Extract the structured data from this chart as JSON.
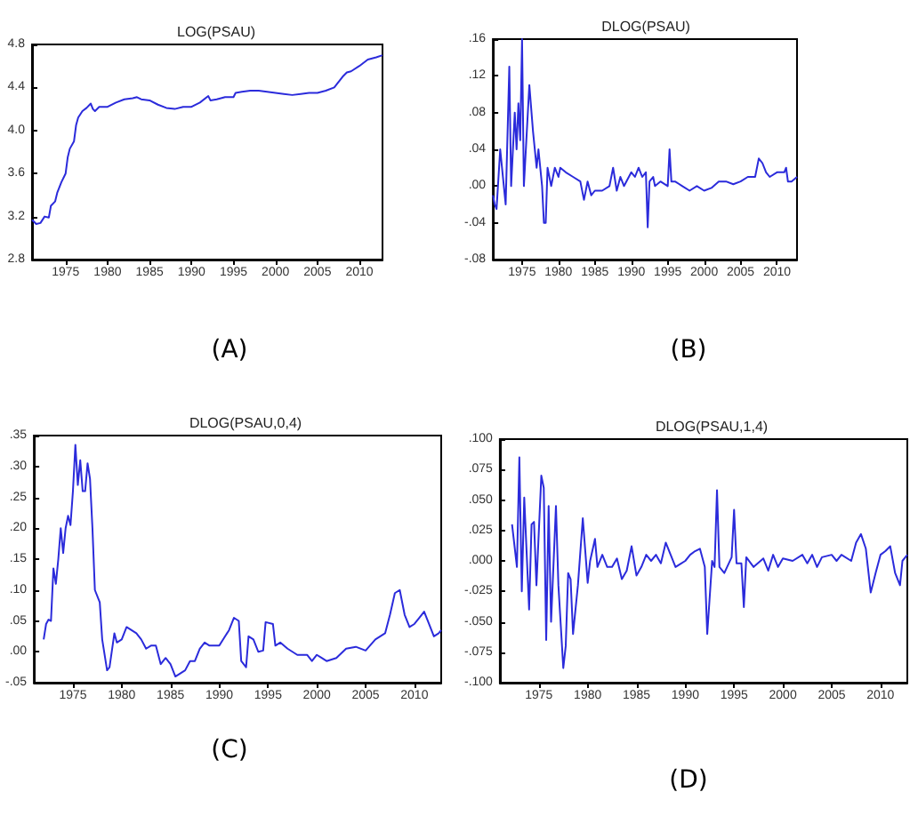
{
  "chart_data": [
    {
      "type": "line",
      "title": "LOG(PSAU)",
      "annotations": [
        "(A)"
      ],
      "xlim": [
        1971,
        2012.75
      ],
      "xticks": [
        1975,
        1980,
        1985,
        1990,
        1995,
        2000,
        2005,
        2010
      ],
      "ylim": [
        2.8,
        4.8
      ],
      "yticks": [
        2.8,
        3.2,
        3.6,
        {
          "value": 4,
          "label": "4.0"
        },
        4.4,
        4.8
      ],
      "grid": false,
      "marker": "none",
      "series": [
        {
          "color": "#2b2bdb",
          "x": [
            1971,
            1971.5,
            1972,
            1972.5,
            1973,
            1973.25,
            1973.75,
            1974,
            1974.5,
            1975,
            1975.25,
            1975.5,
            1976,
            1976.25,
            1976.5,
            1977,
            1977.5,
            1978,
            1978.25,
            1978.5,
            1979,
            1980,
            1981,
            1982,
            1983,
            1983.5,
            1984,
            1985,
            1986,
            1987,
            1988,
            1989,
            1990,
            1991,
            1992,
            1992.25,
            1993,
            1994,
            1995,
            1995.25,
            1996,
            1997,
            1998,
            1999,
            2000,
            2001,
            2002,
            2003,
            2004,
            2005,
            2006,
            2007,
            2008,
            2008.5,
            2009,
            2010,
            2011,
            2012,
            2012.75
          ],
          "values": [
            3.17,
            3.13,
            3.14,
            3.2,
            3.19,
            3.3,
            3.34,
            3.42,
            3.52,
            3.6,
            3.75,
            3.83,
            3.9,
            4.05,
            4.12,
            4.18,
            4.21,
            4.25,
            4.2,
            4.18,
            4.22,
            4.22,
            4.26,
            4.29,
            4.3,
            4.31,
            4.29,
            4.28,
            4.24,
            4.21,
            4.2,
            4.22,
            4.22,
            4.26,
            4.32,
            4.28,
            4.29,
            4.31,
            4.31,
            4.35,
            4.36,
            4.37,
            4.37,
            4.36,
            4.35,
            4.34,
            4.33,
            4.34,
            4.35,
            4.35,
            4.37,
            4.4,
            4.5,
            4.54,
            4.55,
            4.6,
            4.66,
            4.68,
            4.7
          ]
        }
      ]
    },
    {
      "type": "line",
      "title": "DLOG(PSAU)",
      "annotations": [
        "(B)"
      ],
      "xlim": [
        1971,
        2012.75
      ],
      "xticks": [
        1975,
        1980,
        1985,
        1990,
        1995,
        2000,
        2005,
        2010
      ],
      "ylim": [
        -0.08,
        0.16
      ],
      "yticks": [
        {
          "value": -0.08,
          "label": "-.08"
        },
        {
          "value": -0.04,
          "label": "-.04"
        },
        {
          "value": 0,
          "label": ".00"
        },
        {
          "value": 0.04,
          "label": ".04"
        },
        {
          "value": 0.08,
          "label": ".08"
        },
        {
          "value": 0.12,
          "label": ".12"
        },
        {
          "value": 0.16,
          "label": ".16"
        }
      ],
      "grid": false,
      "marker": "none",
      "series": [
        {
          "color": "#2b2bdb",
          "x": [
            1971,
            1971.25,
            1971.5,
            1972,
            1972.5,
            1972.75,
            1973.25,
            1973.5,
            1974,
            1974.25,
            1974.5,
            1974.75,
            1975,
            1975.25,
            1976,
            1976.5,
            1977,
            1977.25,
            1977.75,
            1978,
            1978.25,
            1978.5,
            1979,
            1979.5,
            1980,
            1980.25,
            1981,
            1982,
            1983,
            1983.5,
            1984,
            1984.5,
            1985,
            1986,
            1987,
            1987.5,
            1988,
            1988.5,
            1989,
            1990,
            1990.5,
            1991,
            1991.5,
            1992,
            1992.25,
            1992.5,
            1993,
            1993.25,
            1994,
            1995,
            1995.25,
            1995.5,
            1996,
            1997,
            1998,
            1999,
            2000,
            2001,
            2002,
            2003,
            2004,
            2005,
            2006,
            2007,
            2007.5,
            2008,
            2008.5,
            2009,
            2010,
            2011,
            2011.25,
            2011.5,
            2012,
            2012.75
          ],
          "values": [
            -0.01,
            -0.02,
            -0.025,
            0.04,
            0.0,
            -0.02,
            0.13,
            0.0,
            0.08,
            0.04,
            0.09,
            0.05,
            0.16,
            0.0,
            0.11,
            0.06,
            0.02,
            0.04,
            0.0,
            -0.04,
            -0.04,
            0.02,
            0.0,
            0.02,
            0.01,
            0.02,
            0.015,
            0.01,
            0.005,
            -0.015,
            0.005,
            -0.01,
            -0.005,
            -0.005,
            0.0,
            0.02,
            -0.005,
            0.01,
            0.0,
            0.015,
            0.01,
            0.02,
            0.01,
            0.015,
            -0.045,
            0.005,
            0.01,
            0.0,
            0.005,
            0.0,
            0.04,
            0.005,
            0.005,
            0.0,
            -0.005,
            0.0,
            -0.005,
            -0.002,
            0.005,
            0.005,
            0.002,
            0.005,
            0.01,
            0.01,
            0.03,
            0.025,
            0.015,
            0.01,
            0.015,
            0.015,
            0.02,
            0.005,
            0.005,
            0.01
          ]
        }
      ]
    },
    {
      "type": "line",
      "title": "DLOG(PSAU,0,4)",
      "annotations": [
        "(C)"
      ],
      "xlim": [
        1971,
        2012.75
      ],
      "xticks": [
        1975,
        1980,
        1985,
        1990,
        1995,
        2000,
        2005,
        2010
      ],
      "ylim": [
        -0.05,
        0.35
      ],
      "yticks": [
        {
          "value": -0.05,
          "label": "-.05"
        },
        {
          "value": 0,
          "label": ".00"
        },
        {
          "value": 0.05,
          "label": ".05"
        },
        {
          "value": 0.1,
          "label": ".10"
        },
        {
          "value": 0.15,
          "label": ".15"
        },
        {
          "value": 0.2,
          "label": ".20"
        },
        {
          "value": 0.25,
          "label": ".25"
        },
        {
          "value": 0.3,
          "label": ".30"
        },
        {
          "value": 0.35,
          "label": ".35"
        }
      ],
      "grid": false,
      "marker": "none",
      "series": [
        {
          "color": "#2b2bdb",
          "x": [
            1972,
            1972.25,
            1972.5,
            1972.75,
            1973,
            1973.25,
            1973.5,
            1973.75,
            1974,
            1974.25,
            1974.5,
            1974.75,
            1975,
            1975.25,
            1975.5,
            1975.75,
            1976,
            1976.25,
            1976.5,
            1976.75,
            1977,
            1977.25,
            1977.75,
            1978,
            1978.5,
            1978.75,
            1979.25,
            1979.5,
            1980,
            1980.5,
            1981,
            1981.5,
            1982,
            1982.5,
            1983,
            1983.5,
            1984,
            1984.5,
            1985,
            1985.5,
            1986,
            1986.5,
            1987,
            1987.5,
            1988,
            1988.5,
            1989,
            1990,
            1991,
            1991.5,
            1992,
            1992.25,
            1992.75,
            1993,
            1993.5,
            1994,
            1994.5,
            1994.75,
            1995.5,
            1995.75,
            1996.25,
            1997,
            1998,
            1999,
            1999.5,
            2000,
            2000.5,
            2001,
            2002,
            2003,
            2004,
            2005,
            2006,
            2007,
            2007.5,
            2008,
            2008.5,
            2009,
            2009.5,
            2010,
            2010.5,
            2011,
            2011.5,
            2012,
            2012.5,
            2012.75
          ],
          "values": [
            0.02,
            0.045,
            0.052,
            0.05,
            0.135,
            0.11,
            0.15,
            0.2,
            0.16,
            0.2,
            0.22,
            0.205,
            0.26,
            0.335,
            0.27,
            0.31,
            0.26,
            0.26,
            0.305,
            0.28,
            0.2,
            0.1,
            0.08,
            0.02,
            -0.03,
            -0.025,
            0.03,
            0.015,
            0.02,
            0.04,
            0.035,
            0.03,
            0.02,
            0.005,
            0.01,
            0.01,
            -0.02,
            -0.01,
            -0.02,
            -0.04,
            -0.035,
            -0.03,
            -0.015,
            -0.015,
            0.005,
            0.015,
            0.01,
            0.01,
            0.035,
            0.055,
            0.05,
            -0.015,
            -0.025,
            0.025,
            0.02,
            0.0,
            0.002,
            0.048,
            0.045,
            0.01,
            0.015,
            0.005,
            -0.005,
            -0.005,
            -0.015,
            -0.005,
            -0.01,
            -0.015,
            -0.01,
            0.005,
            0.008,
            0.002,
            0.02,
            0.03,
            0.06,
            0.095,
            0.1,
            0.06,
            0.04,
            0.045,
            0.055,
            0.065,
            0.045,
            0.025,
            0.03,
            0.035
          ]
        }
      ]
    },
    {
      "type": "line",
      "title": "DLOG(PSAU,1,4)",
      "annotations": [
        "(D)"
      ],
      "xlim": [
        1971,
        2012.75
      ],
      "xticks": [
        1975,
        1980,
        1985,
        1990,
        1995,
        2000,
        2005,
        2010
      ],
      "ylim": [
        -0.1,
        0.1
      ],
      "yticks": [
        {
          "value": -0.1,
          "label": "-.100"
        },
        {
          "value": -0.075,
          "label": "-.075"
        },
        {
          "value": -0.05,
          "label": "-.050"
        },
        {
          "value": -0.025,
          "label": "-.025"
        },
        {
          "value": 0,
          "label": ".000"
        },
        {
          "value": 0.025,
          "label": ".025"
        },
        {
          "value": 0.05,
          "label": ".050"
        },
        {
          "value": 0.075,
          "label": ".075"
        },
        {
          "value": 0.1,
          "label": ".100"
        }
      ],
      "grid": false,
      "marker": "none",
      "series": [
        {
          "color": "#2b2bdb",
          "x": [
            1972.25,
            1972.75,
            1973,
            1973.25,
            1973.5,
            1974,
            1974.25,
            1974.5,
            1974.75,
            1975.25,
            1975.5,
            1975.75,
            1976,
            1976.25,
            1976.75,
            1977,
            1977.5,
            1977.75,
            1978,
            1978.25,
            1978.5,
            1979,
            1979.5,
            1980,
            1980.25,
            1980.75,
            1981,
            1981.5,
            1982,
            1982.5,
            1983,
            1983.5,
            1984,
            1984.5,
            1985,
            1985.5,
            1986,
            1986.5,
            1987,
            1987.5,
            1988,
            1988.5,
            1989,
            1990,
            1990.5,
            1991,
            1991.5,
            1992,
            1992.25,
            1992.75,
            1993,
            1993.25,
            1993.5,
            1994,
            1994.75,
            1995,
            1995.25,
            1995.75,
            1996,
            1996.25,
            1997,
            1998,
            1998.5,
            1999,
            1999.5,
            2000,
            2001,
            2002,
            2002.5,
            2003,
            2003.5,
            2004,
            2005,
            2005.5,
            2006,
            2007,
            2007.5,
            2008,
            2008.5,
            2009,
            2009.5,
            2010,
            2010.5,
            2011,
            2011.5,
            2012,
            2012.25,
            2012.75
          ],
          "values": [
            0.03,
            -0.005,
            0.085,
            -0.025,
            0.052,
            -0.04,
            0.03,
            0.032,
            -0.02,
            0.07,
            0.06,
            -0.065,
            0.045,
            -0.05,
            0.045,
            -0.02,
            -0.088,
            -0.07,
            -0.01,
            -0.015,
            -0.06,
            -0.02,
            0.035,
            -0.018,
            0.0,
            0.018,
            -0.005,
            0.005,
            -0.005,
            -0.005,
            0.002,
            -0.015,
            -0.008,
            0.012,
            -0.012,
            -0.005,
            0.005,
            0.0,
            0.005,
            -0.002,
            0.015,
            0.005,
            -0.005,
            0.0,
            0.005,
            0.008,
            0.01,
            -0.005,
            -0.06,
            0.0,
            -0.005,
            0.058,
            -0.005,
            -0.01,
            0.003,
            0.042,
            -0.002,
            -0.002,
            -0.038,
            0.003,
            -0.005,
            0.002,
            -0.008,
            0.005,
            -0.005,
            0.002,
            0.0,
            0.005,
            -0.002,
            0.005,
            -0.005,
            0.003,
            0.005,
            0.0,
            0.005,
            0.0,
            0.015,
            0.022,
            0.01,
            -0.026,
            -0.01,
            0.005,
            0.008,
            0.012,
            -0.01,
            -0.02,
            0.0,
            0.005
          ]
        }
      ]
    }
  ]
}
